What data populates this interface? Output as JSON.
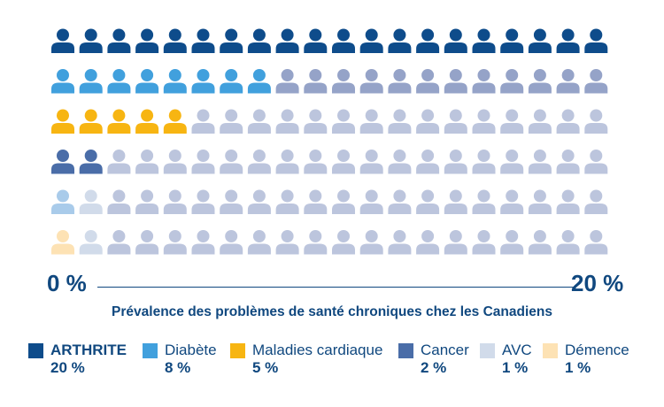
{
  "chart_data": {
    "type": "pictograph",
    "title": "Prévalence des problèmes de santé chroniques chez les Canadiens",
    "x_ticks": [
      "0 %",
      "20 %"
    ],
    "xlim": [
      0,
      20
    ],
    "icons_per_row": 20,
    "unit_per_icon": 1,
    "series": [
      {
        "name": "ARTHRITE",
        "value": 20,
        "value_label": "20 %",
        "color": "#0e4c8b"
      },
      {
        "name": "Diabète",
        "value": 8,
        "value_label": "8 %",
        "color": "#41a0dd"
      },
      {
        "name": "Maladies cardiaque",
        "value": 5,
        "value_label": "5 %",
        "color": "#f7b512"
      },
      {
        "name": "Cancer",
        "value": 2,
        "value_label": "2 %",
        "color": "#4a6da8"
      },
      {
        "name": "AVC",
        "value": 1,
        "value_label": "1 %",
        "color": "#a9cbea"
      },
      {
        "name": "Démence",
        "value": 1,
        "value_label": "1 %",
        "color": "#fde2b4"
      }
    ],
    "remainder_colors": [
      "#0e4c8b",
      "#95a3c8",
      "#bcc5dd",
      "#bcc5dd",
      "#bcc5dd",
      "#bcc5dd"
    ],
    "light_remainder_color": "#d1dbea"
  }
}
